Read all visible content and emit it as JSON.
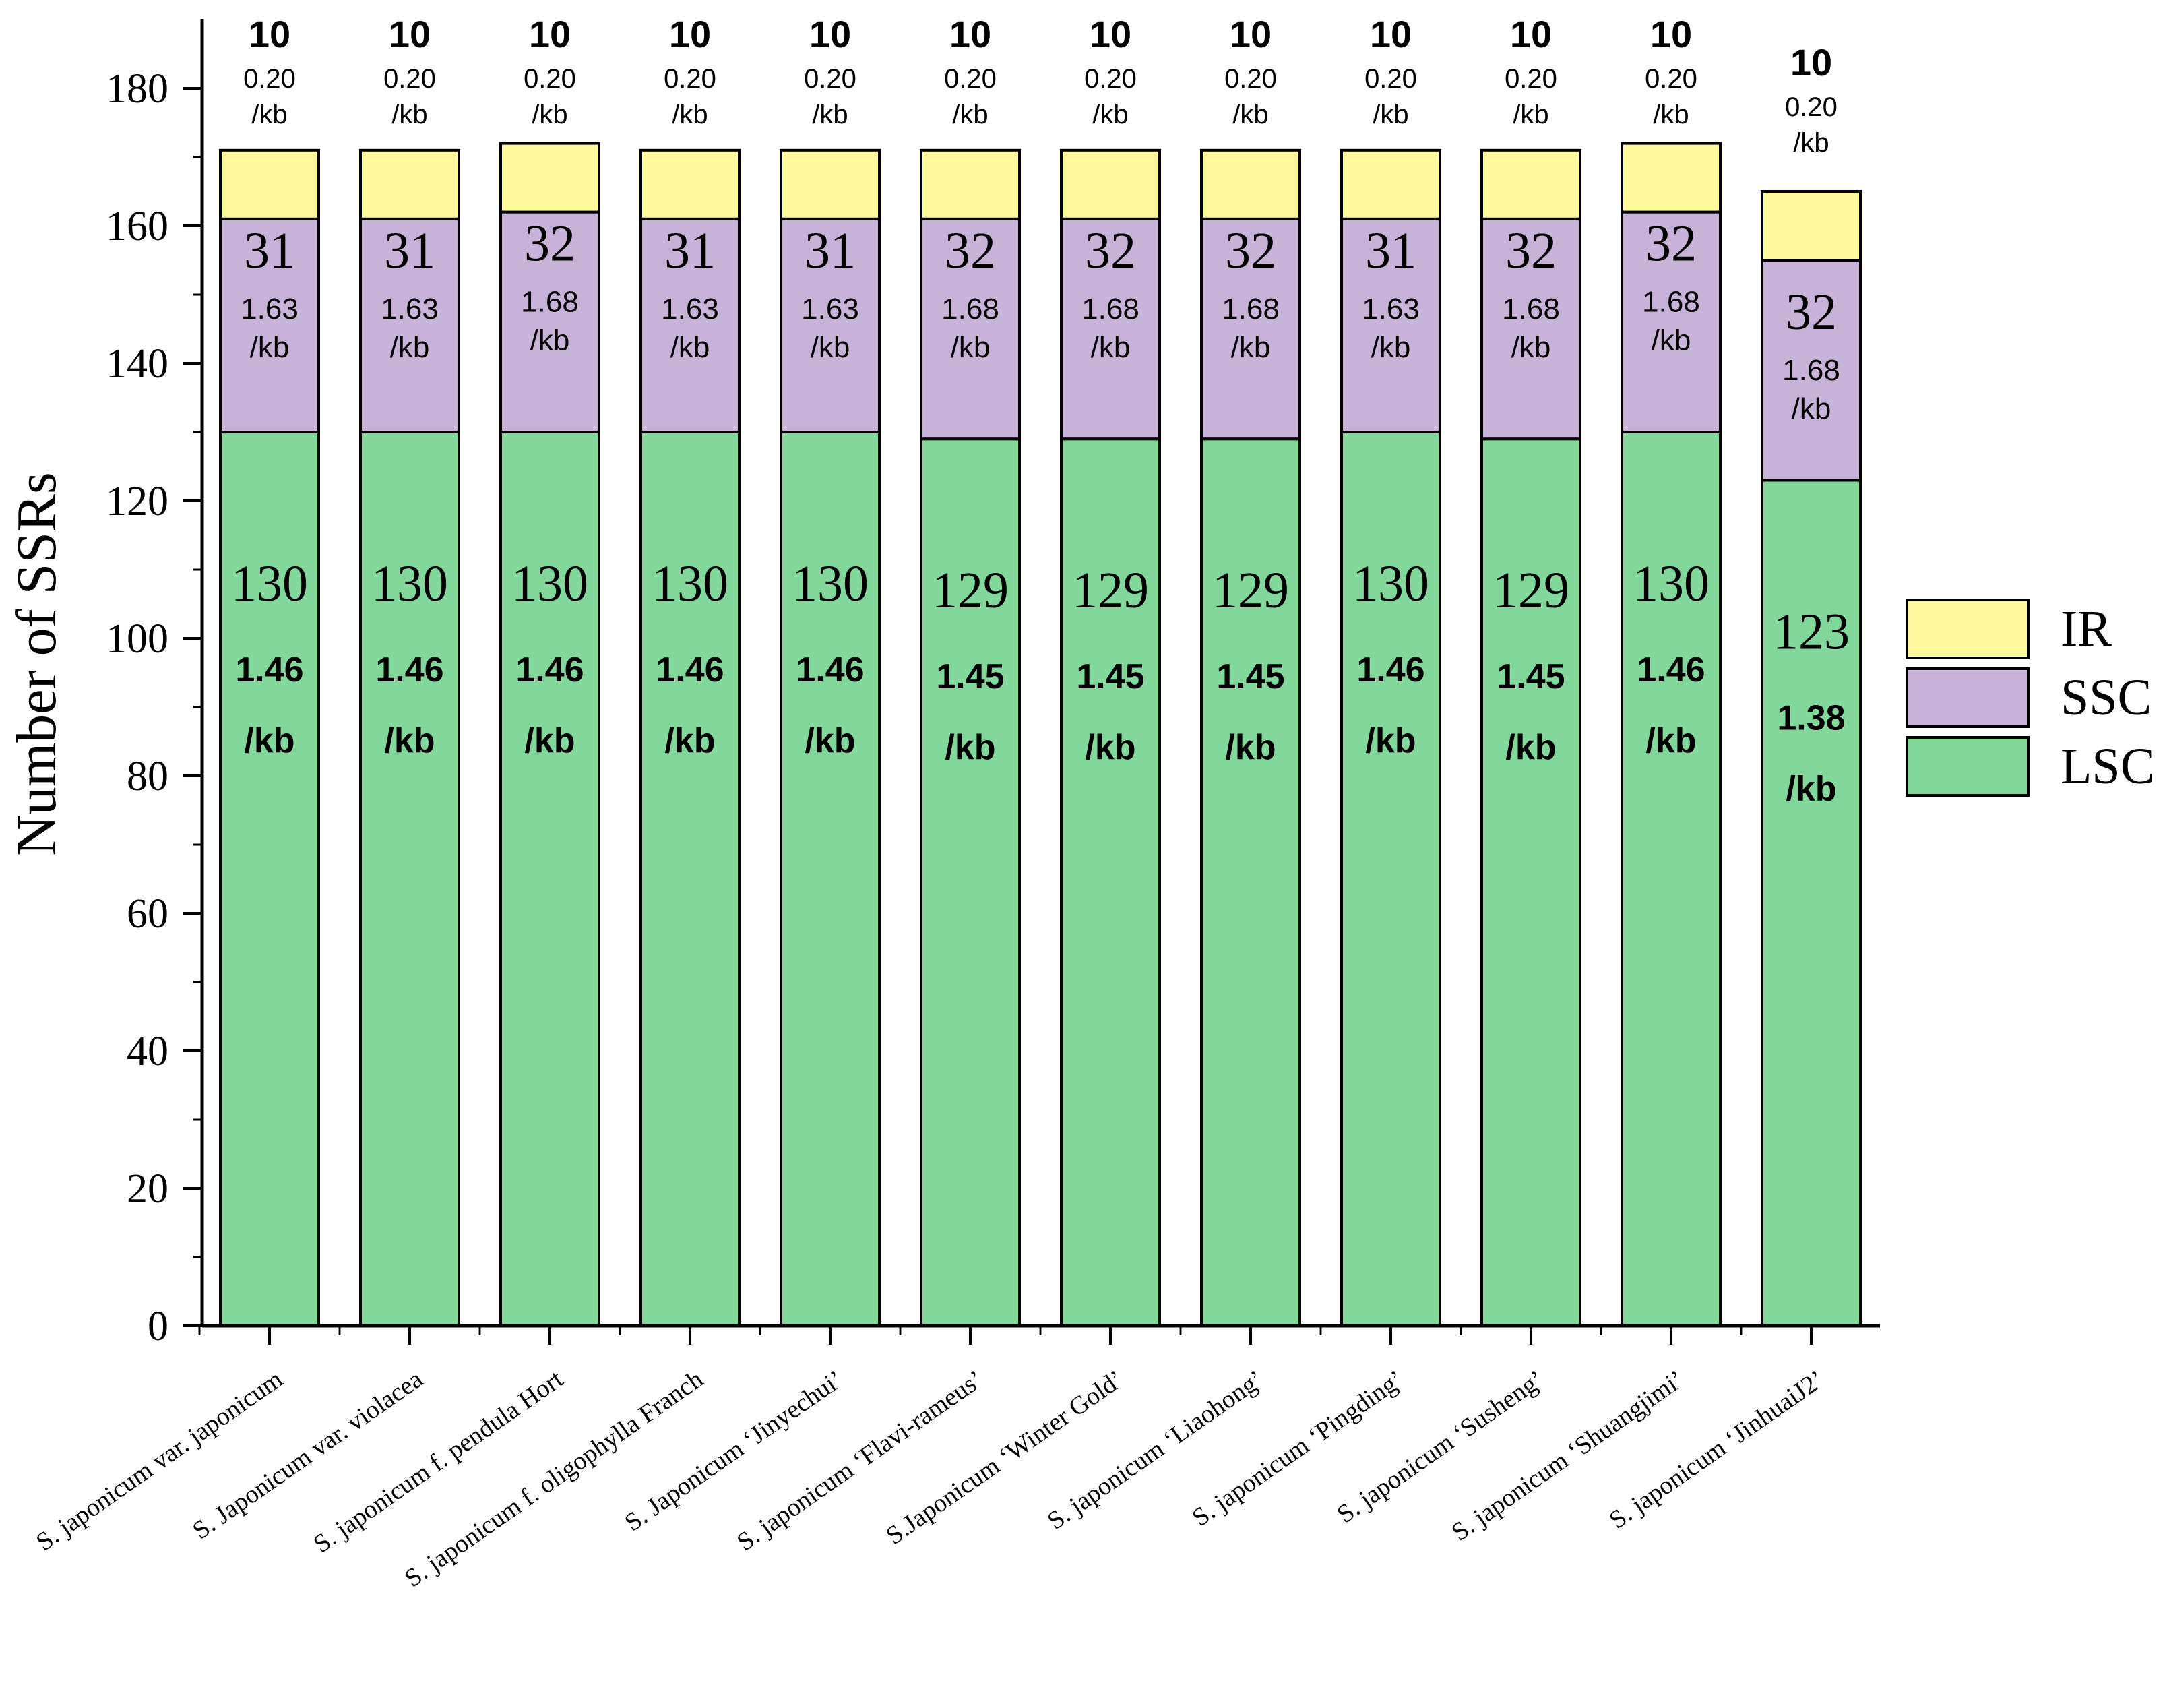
{
  "chart_data": {
    "type": "bar",
    "stacked": true,
    "title": "",
    "xlabel": "",
    "ylabel": "Number of SSRs",
    "ylim": [
      0,
      185
    ],
    "yticks": [
      0,
      20,
      40,
      60,
      80,
      100,
      120,
      140,
      160,
      180
    ],
    "legend_position": "right",
    "categories": [
      "S. japonicum var. japonicum",
      "S. Japonicum var. violacea",
      "S. japonicum f. pendula Hort",
      "S. japonicum f. oligophylla Franch",
      "S. Japonicum ‘Jinyechui’",
      "S. japonicum ‘Flavi-rameus’",
      "S.Japonicum ‘Winter Gold’",
      "S. japonicum ‘Liaohong’",
      "S. japonicum ‘Pingding’",
      "S. japonicum ‘Susheng’",
      "S. japonicum ‘Shuangjimi’",
      "S. japonicum ‘JinhuaiJ2’"
    ],
    "series": [
      {
        "name": "LSC",
        "color": "#82d79a",
        "values": [
          130,
          130,
          130,
          130,
          130,
          129,
          129,
          129,
          130,
          129,
          130,
          123
        ],
        "density_labels": [
          "1.46",
          "1.46",
          "1.46",
          "1.46",
          "1.46",
          "1.45",
          "1.45",
          "1.45",
          "1.46",
          "1.45",
          "1.46",
          "1.38"
        ]
      },
      {
        "name": "SSC",
        "color": "#c8b3d8",
        "values": [
          31,
          31,
          32,
          31,
          31,
          32,
          32,
          32,
          31,
          32,
          32,
          32
        ],
        "density_labels": [
          "1.63",
          "1.63",
          "1.68",
          "1.63",
          "1.63",
          "1.68",
          "1.68",
          "1.68",
          "1.63",
          "1.68",
          "1.68",
          "1.68"
        ]
      },
      {
        "name": "IR",
        "color": "#fefa9b",
        "values": [
          10,
          10,
          10,
          10,
          10,
          10,
          10,
          10,
          10,
          10,
          10,
          10
        ],
        "density_labels": [
          "0.20",
          "0.20",
          "0.20",
          "0.20",
          "0.20",
          "0.20",
          "0.20",
          "0.20",
          "0.20",
          "0.20",
          "0.20",
          "0.20"
        ]
      }
    ],
    "density_unit": "/kb"
  }
}
